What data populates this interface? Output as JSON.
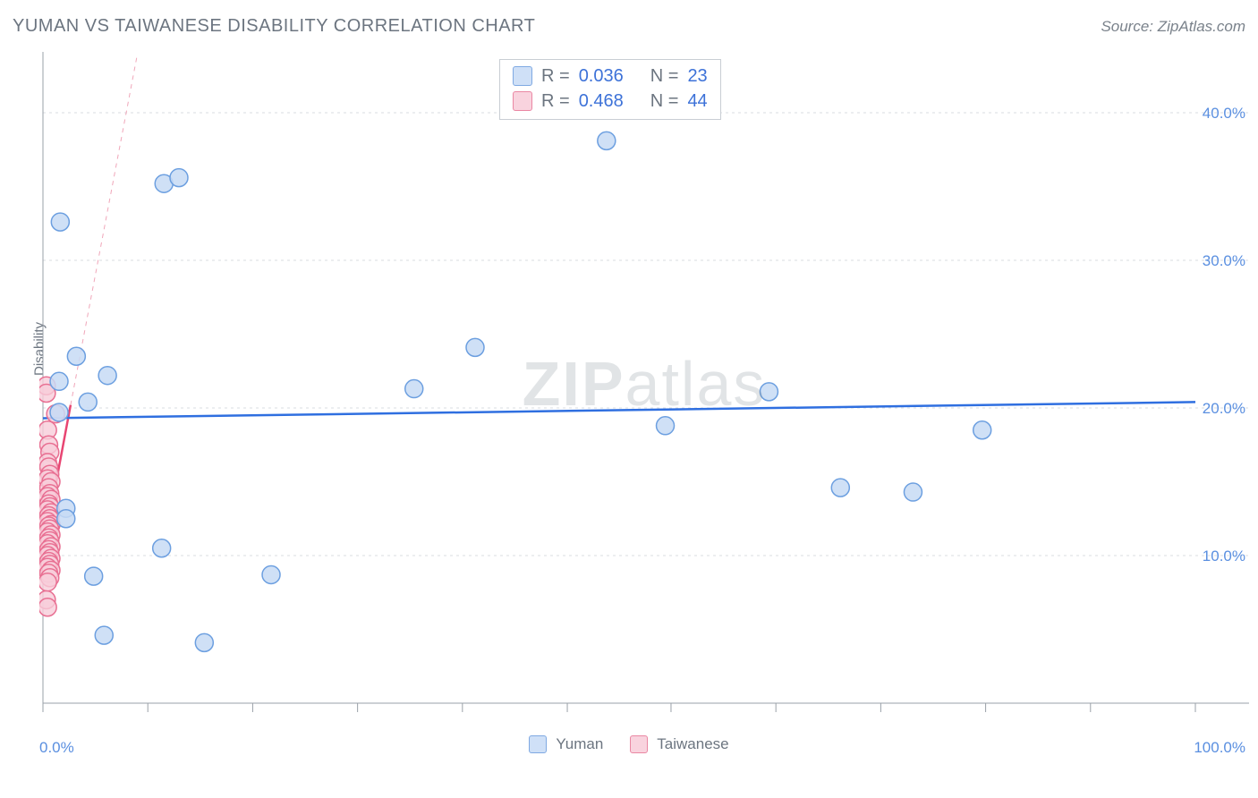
{
  "header": {
    "title": "YUMAN VS TAIWANESE DISABILITY CORRELATION CHART",
    "source": "Source: ZipAtlas.com"
  },
  "axes": {
    "y_title": "Disability",
    "x_min_label": "0.0%",
    "x_max_label": "100.0%",
    "y_grid": [
      {
        "value": 10.0,
        "label": "10.0%"
      },
      {
        "value": 20.0,
        "label": "20.0%"
      },
      {
        "value": 30.0,
        "label": "30.0%"
      },
      {
        "value": 40.0,
        "label": "40.0%"
      }
    ],
    "x_ticks": [
      0,
      9.1,
      18.2,
      27.3,
      36.4,
      45.5,
      54.5,
      63.6,
      72.7,
      81.8,
      90.9,
      100
    ],
    "xlim": [
      0,
      100
    ],
    "ylim": [
      0,
      44
    ]
  },
  "chart": {
    "type": "scatter",
    "background_color": "#ffffff",
    "grid_color": "#d9dde2",
    "axis_color": "#9aa0a8",
    "label_color": "#5a8fe0",
    "tick_label_fontsize": 17,
    "marker_radius": 10,
    "marker_stroke_width": 1.5,
    "watermark": "ZIPatlas"
  },
  "series": [
    {
      "name": "Yuman",
      "role": "series-a",
      "fill_color": "#c7dbf5",
      "stroke_color": "#6c9fe0",
      "swatch_fill": "#cfe0f7",
      "swatch_border": "#7fa9e2",
      "marker_opacity": 0.85,
      "R": "0.036",
      "N": "23",
      "trend": {
        "x1": 0,
        "y1": 19.3,
        "x2": 100,
        "y2": 20.4,
        "color": "#2f6fe0",
        "width": 2.5,
        "dash": ""
      },
      "trend_ext": null,
      "points": [
        {
          "x": 1.5,
          "y": 32.6
        },
        {
          "x": 10.5,
          "y": 35.2
        },
        {
          "x": 11.8,
          "y": 35.6
        },
        {
          "x": 48.9,
          "y": 38.1
        },
        {
          "x": 2.9,
          "y": 23.5
        },
        {
          "x": 5.6,
          "y": 22.2
        },
        {
          "x": 1.4,
          "y": 21.8
        },
        {
          "x": 3.9,
          "y": 20.4
        },
        {
          "x": 1.4,
          "y": 19.7
        },
        {
          "x": 37.5,
          "y": 24.1
        },
        {
          "x": 32.2,
          "y": 21.3
        },
        {
          "x": 63.0,
          "y": 21.1
        },
        {
          "x": 54.0,
          "y": 18.8
        },
        {
          "x": 81.5,
          "y": 18.5
        },
        {
          "x": 69.2,
          "y": 14.6
        },
        {
          "x": 75.5,
          "y": 14.3
        },
        {
          "x": 10.3,
          "y": 10.5
        },
        {
          "x": 4.4,
          "y": 8.6
        },
        {
          "x": 19.8,
          "y": 8.7
        },
        {
          "x": 5.3,
          "y": 4.6
        },
        {
          "x": 14.0,
          "y": 4.1
        },
        {
          "x": 2.0,
          "y": 13.2
        },
        {
          "x": 2.0,
          "y": 12.5
        }
      ]
    },
    {
      "name": "Taiwanese",
      "role": "series-b",
      "fill_color": "#f7cdd9",
      "stroke_color": "#e86f92",
      "swatch_fill": "#f9d3de",
      "swatch_border": "#ea87a3",
      "marker_opacity": 0.8,
      "R": "0.468",
      "N": "44",
      "trend": {
        "x1": 0,
        "y1": 10.2,
        "x2": 2.4,
        "y2": 20.2,
        "color": "#e84572",
        "width": 2.5,
        "dash": ""
      },
      "trend_ext": {
        "x1": 2.4,
        "y1": 20.2,
        "x2": 8.2,
        "y2": 44.0,
        "color": "#f0a6b9",
        "width": 1,
        "dash": "5,5"
      },
      "points": [
        {
          "x": 0.3,
          "y": 21.5
        },
        {
          "x": 0.3,
          "y": 21.0
        },
        {
          "x": 1.1,
          "y": 19.6
        },
        {
          "x": 0.4,
          "y": 18.5
        },
        {
          "x": 0.5,
          "y": 17.5
        },
        {
          "x": 0.6,
          "y": 17.0
        },
        {
          "x": 0.4,
          "y": 16.3
        },
        {
          "x": 0.5,
          "y": 16.0
        },
        {
          "x": 0.6,
          "y": 15.5
        },
        {
          "x": 0.4,
          "y": 15.2
        },
        {
          "x": 0.7,
          "y": 15.0
        },
        {
          "x": 0.5,
          "y": 14.6
        },
        {
          "x": 0.6,
          "y": 14.2
        },
        {
          "x": 0.4,
          "y": 14.0
        },
        {
          "x": 0.7,
          "y": 13.8
        },
        {
          "x": 0.5,
          "y": 13.5
        },
        {
          "x": 0.6,
          "y": 13.3
        },
        {
          "x": 0.4,
          "y": 13.1
        },
        {
          "x": 0.7,
          "y": 12.9
        },
        {
          "x": 0.5,
          "y": 12.7
        },
        {
          "x": 0.6,
          "y": 12.5
        },
        {
          "x": 0.4,
          "y": 12.3
        },
        {
          "x": 0.7,
          "y": 12.1
        },
        {
          "x": 0.5,
          "y": 12.0
        },
        {
          "x": 0.6,
          "y": 11.8
        },
        {
          "x": 0.4,
          "y": 11.6
        },
        {
          "x": 0.7,
          "y": 11.4
        },
        {
          "x": 0.5,
          "y": 11.2
        },
        {
          "x": 0.6,
          "y": 11.0
        },
        {
          "x": 0.4,
          "y": 10.8
        },
        {
          "x": 0.7,
          "y": 10.6
        },
        {
          "x": 0.5,
          "y": 10.4
        },
        {
          "x": 0.6,
          "y": 10.2
        },
        {
          "x": 0.4,
          "y": 10.0
        },
        {
          "x": 0.7,
          "y": 9.8
        },
        {
          "x": 0.5,
          "y": 9.6
        },
        {
          "x": 0.6,
          "y": 9.4
        },
        {
          "x": 0.4,
          "y": 9.2
        },
        {
          "x": 0.7,
          "y": 9.0
        },
        {
          "x": 0.5,
          "y": 8.8
        },
        {
          "x": 0.6,
          "y": 8.5
        },
        {
          "x": 0.4,
          "y": 8.2
        },
        {
          "x": 0.3,
          "y": 7.0
        },
        {
          "x": 0.4,
          "y": 6.5
        }
      ]
    }
  ],
  "legend_rn": {
    "labels": {
      "R": "R =",
      "N": "N ="
    }
  },
  "bottom_legend": {
    "items": [
      {
        "series_index": 0
      },
      {
        "series_index": 1
      }
    ]
  }
}
